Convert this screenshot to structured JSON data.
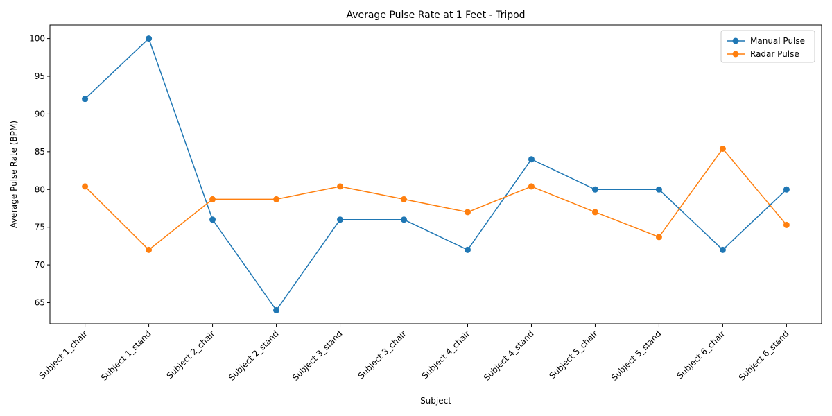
{
  "chart_data": {
    "type": "line",
    "title": "Average Pulse Rate at 1 Feet - Tripod",
    "xlabel": "Subject",
    "ylabel": "Average Pulse Rate (BPM)",
    "categories": [
      "Subject 1_chair",
      "Subject 1_stand",
      "Subject 2_chair",
      "Subject 2_stand",
      "Subject 3_stand",
      "Subject 3_chair",
      "Subject 4_chair",
      "Subject 4_stand",
      "Subject 5_chair",
      "Subject 5_stand",
      "Subject 6_chair",
      "Subject 6_stand"
    ],
    "yticks": [
      65,
      70,
      75,
      80,
      85,
      90,
      95,
      100
    ],
    "ylim": [
      62.2,
      101.8
    ],
    "grid": false,
    "legend_position": "top-right",
    "series": [
      {
        "name": "Manual Pulse",
        "color": "#1f77b4",
        "marker": "circle",
        "values": [
          92,
          100,
          76,
          64,
          76,
          76,
          72,
          84,
          80,
          80,
          72,
          80
        ]
      },
      {
        "name": "Radar Pulse",
        "color": "#ff7f0e",
        "marker": "circle",
        "values": [
          80.4,
          72.0,
          78.7,
          78.7,
          80.4,
          78.7,
          77.0,
          80.4,
          77.0,
          73.7,
          85.4,
          75.3
        ]
      }
    ]
  }
}
